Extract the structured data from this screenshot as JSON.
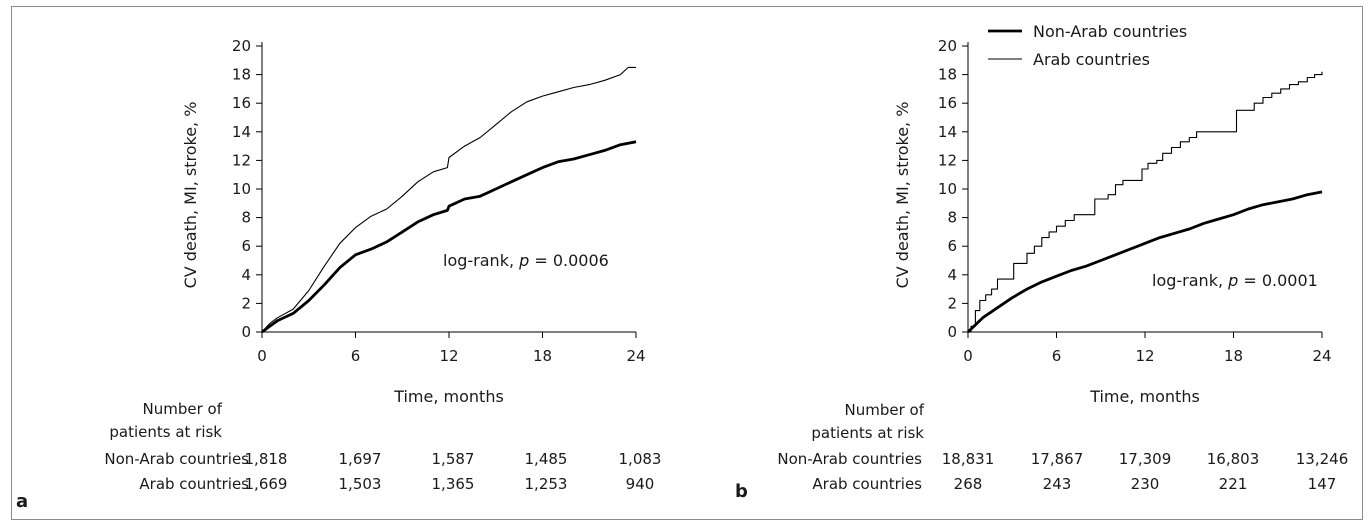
{
  "chart_data": [
    {
      "panel": "a",
      "type": "line",
      "xlabel": "Time, months",
      "ylabel": "CV death, MI, stroke, %",
      "xlim": [
        0,
        24
      ],
      "ylim": [
        0,
        20
      ],
      "x_ticks": [
        0,
        6,
        12,
        18,
        24
      ],
      "y_ticks": [
        0,
        2,
        4,
        6,
        8,
        10,
        12,
        14,
        16,
        18,
        20
      ],
      "annotation": {
        "prefix": "log-rank, ",
        "p": "p",
        "rest": " = 0.0006"
      },
      "series": [
        {
          "name": "Non-Arab countries",
          "stroke": "#000000",
          "width": 2.8,
          "points": [
            [
              0,
              0
            ],
            [
              0.5,
              0.4
            ],
            [
              1,
              0.8
            ],
            [
              2,
              1.3
            ],
            [
              3,
              2.2
            ],
            [
              4,
              3.3
            ],
            [
              5,
              4.5
            ],
            [
              6,
              5.4
            ],
            [
              7,
              5.8
            ],
            [
              8,
              6.3
            ],
            [
              9,
              7.0
            ],
            [
              10,
              7.7
            ],
            [
              11,
              8.2
            ],
            [
              11.9,
              8.5
            ],
            [
              12,
              8.8
            ],
            [
              13,
              9.3
            ],
            [
              14,
              9.5
            ],
            [
              15,
              10.0
            ],
            [
              16,
              10.5
            ],
            [
              17,
              11.0
            ],
            [
              18,
              11.5
            ],
            [
              19,
              11.9
            ],
            [
              20,
              12.1
            ],
            [
              21,
              12.4
            ],
            [
              22,
              12.7
            ],
            [
              23,
              13.1
            ],
            [
              24,
              13.3
            ]
          ]
        },
        {
          "name": "Arab countries",
          "stroke": "#000000",
          "width": 1.1,
          "points": [
            [
              0,
              0
            ],
            [
              0.5,
              0.6
            ],
            [
              1,
              1.0
            ],
            [
              2,
              1.6
            ],
            [
              3,
              2.9
            ],
            [
              4,
              4.6
            ],
            [
              5,
              6.2
            ],
            [
              6,
              7.3
            ],
            [
              7,
              8.1
            ],
            [
              8,
              8.6
            ],
            [
              9,
              9.5
            ],
            [
              10,
              10.5
            ],
            [
              11,
              11.2
            ],
            [
              11.9,
              11.5
            ],
            [
              12,
              12.2
            ],
            [
              13,
              13.0
            ],
            [
              14,
              13.6
            ],
            [
              15,
              14.5
            ],
            [
              16,
              15.4
            ],
            [
              17,
              16.1
            ],
            [
              18,
              16.5
            ],
            [
              19,
              16.8
            ],
            [
              20,
              17.1
            ],
            [
              21,
              17.3
            ],
            [
              22,
              17.6
            ],
            [
              23,
              18.0
            ],
            [
              23.5,
              18.5
            ],
            [
              24,
              18.5
            ]
          ]
        }
      ],
      "risk_table": {
        "header_line1": "Number of",
        "header_line2": "patients at risk",
        "rows": [
          {
            "label": "Non-Arab countries",
            "values": [
              "1,818",
              "1,697",
              "1,587",
              "1,485",
              "1,083"
            ]
          },
          {
            "label": "Arab countries",
            "values": [
              "1,669",
              "1,503",
              "1,365",
              "1,253",
              "940"
            ]
          }
        ]
      }
    },
    {
      "panel": "b",
      "type": "line",
      "xlabel": "Time, months",
      "ylabel": "CV death, MI, stroke, %",
      "xlim": [
        0,
        24
      ],
      "ylim": [
        0,
        20
      ],
      "x_ticks": [
        0,
        6,
        12,
        18,
        24
      ],
      "y_ticks": [
        0,
        2,
        4,
        6,
        8,
        10,
        12,
        14,
        16,
        18,
        20
      ],
      "annotation": {
        "prefix": "log-rank, ",
        "p": "p",
        "rest": " = 0.0001"
      },
      "legend": [
        {
          "label": "Non-Arab countries",
          "stroke": "#000000",
          "width": 2.8
        },
        {
          "label": "Arab countries",
          "stroke": "#000000",
          "width": 1.1
        }
      ],
      "series": [
        {
          "name": "Non-Arab countries",
          "stroke": "#000000",
          "width": 2.8,
          "points": [
            [
              0,
              0
            ],
            [
              0.5,
              0.5
            ],
            [
              1,
              1.0
            ],
            [
              2,
              1.7
            ],
            [
              3,
              2.4
            ],
            [
              4,
              3.0
            ],
            [
              5,
              3.5
            ],
            [
              6,
              3.9
            ],
            [
              7,
              4.3
            ],
            [
              8,
              4.6
            ],
            [
              9,
              5.0
            ],
            [
              10,
              5.4
            ],
            [
              11,
              5.8
            ],
            [
              12,
              6.2
            ],
            [
              13,
              6.6
            ],
            [
              14,
              6.9
            ],
            [
              15,
              7.2
            ],
            [
              16,
              7.6
            ],
            [
              17,
              7.9
            ],
            [
              18,
              8.2
            ],
            [
              19,
              8.6
            ],
            [
              20,
              8.9
            ],
            [
              21,
              9.1
            ],
            [
              22,
              9.3
            ],
            [
              23,
              9.6
            ],
            [
              24,
              9.8
            ]
          ]
        },
        {
          "name": "Arab countries",
          "stroke": "#000000",
          "width": 1.1,
          "step": true,
          "points": [
            [
              0,
              0
            ],
            [
              0.2,
              0.4
            ],
            [
              0.5,
              1.5
            ],
            [
              0.8,
              2.2
            ],
            [
              1.2,
              2.6
            ],
            [
              1.6,
              3.0
            ],
            [
              2.0,
              3.7
            ],
            [
              2.6,
              3.7
            ],
            [
              3.1,
              4.8
            ],
            [
              3.6,
              4.8
            ],
            [
              4.0,
              5.5
            ],
            [
              4.5,
              6.0
            ],
            [
              5.0,
              6.6
            ],
            [
              5.5,
              7.0
            ],
            [
              6.0,
              7.4
            ],
            [
              6.6,
              7.8
            ],
            [
              7.2,
              8.2
            ],
            [
              8.0,
              8.2
            ],
            [
              8.6,
              9.3
            ],
            [
              9.5,
              9.6
            ],
            [
              10.0,
              10.3
            ],
            [
              10.5,
              10.6
            ],
            [
              11.4,
              10.6
            ],
            [
              11.8,
              11.4
            ],
            [
              12.2,
              11.8
            ],
            [
              12.8,
              12.0
            ],
            [
              13.2,
              12.5
            ],
            [
              13.8,
              12.9
            ],
            [
              14.4,
              13.3
            ],
            [
              15.0,
              13.6
            ],
            [
              15.5,
              14.0
            ],
            [
              16.2,
              14.0
            ],
            [
              17.5,
              14.0
            ],
            [
              18.2,
              15.5
            ],
            [
              18.8,
              15.5
            ],
            [
              19.4,
              16.0
            ],
            [
              20.0,
              16.4
            ],
            [
              20.6,
              16.7
            ],
            [
              21.2,
              17.0
            ],
            [
              21.8,
              17.3
            ],
            [
              22.4,
              17.5
            ],
            [
              23.0,
              17.8
            ],
            [
              23.5,
              18.0
            ],
            [
              24.0,
              18.2
            ]
          ]
        }
      ],
      "risk_table": {
        "header_line1": "Number of",
        "header_line2": "patients at risk",
        "rows": [
          {
            "label": "Non-Arab countries",
            "values": [
              "18,831",
              "17,867",
              "17,309",
              "16,803",
              "13,246"
            ]
          },
          {
            "label": "Arab countries",
            "values": [
              "268",
              "243",
              "230",
              "221",
              "147"
            ]
          }
        ]
      }
    }
  ]
}
